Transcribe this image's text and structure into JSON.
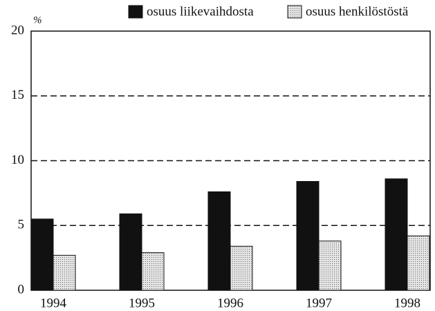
{
  "chart_data": {
    "type": "bar",
    "y_unit": "%",
    "categories": [
      "1994",
      "1995",
      "1996",
      "1997",
      "1998"
    ],
    "series": [
      {
        "name": "osuus liikevaihdosta",
        "color": "#111111",
        "values": [
          5.5,
          5.9,
          7.6,
          8.4,
          8.6
        ]
      },
      {
        "name": "osuus henkilöstöstä",
        "color": "#c8c8c8",
        "values": [
          2.7,
          2.9,
          3.4,
          3.8,
          4.2
        ]
      }
    ],
    "ylim": [
      0,
      20
    ],
    "yticks": [
      0,
      5,
      10,
      15,
      20
    ],
    "grid": true,
    "grid_style": "dashed",
    "legend": "top-right"
  }
}
